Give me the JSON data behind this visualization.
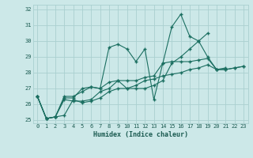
{
  "title": "",
  "xlabel": "Humidex (Indice chaleur)",
  "bg_color": "#cce8e8",
  "grid_color": "#aad0d0",
  "line_color": "#1a6e60",
  "xlim": [
    -0.5,
    23.5
  ],
  "ylim": [
    24.8,
    32.3
  ],
  "yticks": [
    25,
    26,
    27,
    28,
    29,
    30,
    31,
    32
  ],
  "xticks": [
    0,
    1,
    2,
    3,
    4,
    5,
    6,
    7,
    8,
    9,
    10,
    11,
    12,
    13,
    14,
    15,
    16,
    17,
    18,
    19,
    20,
    21,
    22,
    23
  ],
  "lines": [
    [
      26.5,
      25.1,
      25.2,
      26.5,
      26.5,
      26.8,
      27.1,
      27.0,
      29.6,
      29.8,
      29.5,
      28.7,
      29.5,
      26.3,
      28.6,
      30.9,
      31.7,
      30.3,
      30.0,
      29.0,
      28.2,
      28.3,
      null,
      null
    ],
    [
      26.5,
      25.1,
      25.2,
      26.4,
      26.4,
      27.0,
      27.1,
      27.0,
      27.4,
      27.5,
      27.0,
      27.0,
      27.0,
      27.2,
      27.5,
      28.6,
      29.0,
      29.5,
      30.0,
      30.5,
      null,
      null,
      null,
      null
    ],
    [
      26.5,
      25.1,
      25.2,
      26.3,
      26.2,
      26.2,
      26.3,
      26.8,
      27.0,
      27.5,
      27.5,
      27.5,
      27.7,
      27.8,
      28.6,
      28.7,
      28.7,
      28.7,
      28.8,
      28.9,
      28.2,
      28.2,
      28.3,
      28.4
    ],
    [
      26.5,
      25.1,
      25.2,
      25.3,
      26.3,
      26.1,
      26.2,
      26.4,
      26.8,
      27.0,
      27.0,
      27.2,
      27.5,
      27.6,
      27.8,
      27.9,
      28.0,
      28.2,
      28.3,
      28.5,
      28.2,
      28.2,
      28.3,
      28.4
    ]
  ]
}
